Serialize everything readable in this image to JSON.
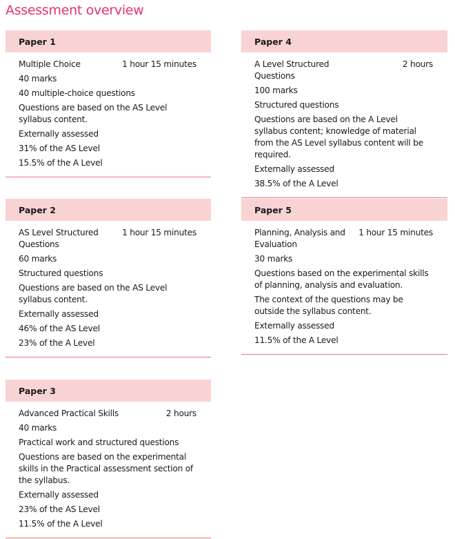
{
  "title": "Assessment overview",
  "colors": {
    "title": "#e4336b",
    "header_bg": "#f9d3d3",
    "rule": "#e8787e"
  },
  "papers": [
    {
      "name": "Paper 1",
      "type": "Multiple Choice",
      "duration": "1 hour 15 minutes",
      "details": [
        "40 marks",
        "40 multiple-choice questions",
        "Questions are based on the AS Level syllabus content.",
        "Externally assessed",
        "31% of the AS Level",
        "15.5% of the A Level"
      ]
    },
    {
      "name": "Paper 4",
      "type": "A Level Structured Questions",
      "duration": "2 hours",
      "details": [
        "100 marks",
        "Structured questions",
        "Questions are based on the A Level syllabus content; knowledge of material from the AS Level syllabus content will be required.",
        "Externally assessed",
        "38.5% of the A Level"
      ]
    },
    {
      "name": "Paper 2",
      "type": "AS Level Structured Questions",
      "duration": "1 hour 15 minutes",
      "details": [
        "60 marks",
        "Structured questions",
        "Questions are based on the AS Level syllabus content.",
        "Externally assessed",
        "46% of the AS Level",
        "23% of the A Level"
      ]
    },
    {
      "name": "Paper 5",
      "type": "Planning, Analysis and Evaluation",
      "duration": "1 hour 15 minutes",
      "details": [
        "30 marks",
        "Questions based on the experimental skills of planning, analysis and evaluation.",
        "The context of the questions may be outside the syllabus content.",
        "Externally assessed",
        "11.5% of the A Level"
      ]
    },
    {
      "name": "Paper 3",
      "type": "Advanced Practical Skills",
      "duration": "2 hours",
      "details": [
        "40 marks",
        "Practical work and structured questions",
        "Questions are based on the experimental skills in the Practical assessment section of the syllabus.",
        "Externally assessed",
        "23% of the AS Level",
        "11.5% of the A Level"
      ]
    }
  ]
}
